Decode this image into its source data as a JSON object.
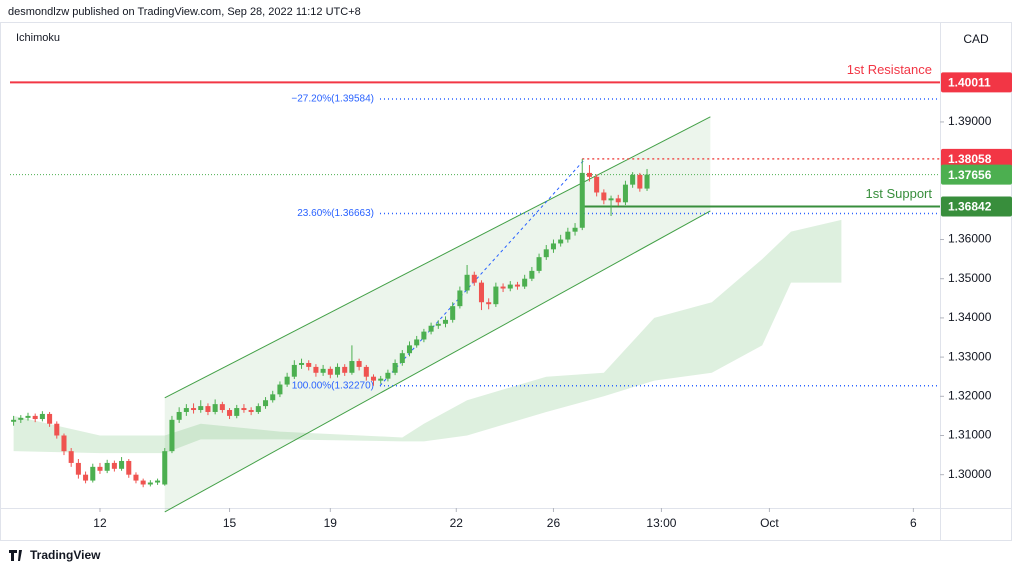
{
  "header": {
    "publisher": "desmondlzw published on TradingView.com, Sep 28, 2022 11:12 UTC+8",
    "indicator": "Ichimoku",
    "currency": "CAD"
  },
  "footer": {
    "brand": "TradingView"
  },
  "chart_data": {
    "type": "candlestick",
    "up_color": "#4caf50",
    "down_color": "#ef5350",
    "open": [
      1.3135,
      1.314,
      1.3145,
      1.315,
      1.3142,
      1.3155,
      1.313,
      1.31,
      1.306,
      1.303,
      1.3,
      1.2985,
      1.302,
      1.301,
      1.303,
      1.3015,
      1.3035,
      1.3,
      1.2985,
      1.2975,
      1.298,
      1.2975,
      1.306,
      1.314,
      1.316,
      1.317,
      1.3165,
      1.3175,
      1.316,
      1.318,
      1.3165,
      1.315,
      1.317,
      1.3165,
      1.316,
      1.3175,
      1.319,
      1.3205,
      1.323,
      1.325,
      1.328,
      1.3285,
      1.3275,
      1.326,
      1.327,
      1.3255,
      1.3275,
      1.326,
      1.329,
      1.3275,
      1.325,
      1.324,
      1.3245,
      1.326,
      1.3285,
      1.331,
      1.333,
      1.3345,
      1.3365,
      1.338,
      1.3385,
      1.3395,
      1.343,
      1.347,
      1.351,
      1.349,
      1.344,
      1.3435,
      1.348,
      1.3475,
      1.3485,
      1.348,
      1.35,
      1.352,
      1.3555,
      1.3575,
      1.359,
      1.36,
      1.362,
      1.363,
      1.377,
      1.376,
      1.372,
      1.37,
      1.3705,
      1.3695,
      1.374,
      1.3765,
      1.373
    ],
    "high": [
      1.315,
      1.3152,
      1.3158,
      1.3156,
      1.3162,
      1.316,
      1.3136,
      1.3105,
      1.3068,
      1.304,
      1.3008,
      1.3028,
      1.303,
      1.3038,
      1.3036,
      1.3045,
      1.304,
      1.3006,
      1.299,
      1.2986,
      1.299,
      1.3068,
      1.315,
      1.3172,
      1.318,
      1.3182,
      1.319,
      1.3182,
      1.3192,
      1.3186,
      1.317,
      1.3178,
      1.318,
      1.3172,
      1.3182,
      1.3198,
      1.3214,
      1.3238,
      1.326,
      1.3292,
      1.3296,
      1.3292,
      1.3282,
      1.328,
      1.3276,
      1.3284,
      1.3282,
      1.333,
      1.3296,
      1.328,
      1.3256,
      1.3252,
      1.3268,
      1.3294,
      1.3318,
      1.334,
      1.3354,
      1.3372,
      1.3388,
      1.3394,
      1.3404,
      1.344,
      1.348,
      1.3535,
      1.3518,
      1.3496,
      1.345,
      1.349,
      1.3488,
      1.3494,
      1.3492,
      1.351,
      1.353,
      1.3564,
      1.3586,
      1.36,
      1.3612,
      1.363,
      1.3642,
      1.38058,
      1.379,
      1.3766,
      1.3728,
      1.3712,
      1.3714,
      1.375,
      1.3772,
      1.377,
      1.378
    ],
    "low": [
      1.3125,
      1.3132,
      1.3138,
      1.3134,
      1.3136,
      1.3122,
      1.3092,
      1.305,
      1.302,
      1.299,
      1.2978,
      1.298,
      1.3002,
      1.3004,
      1.3008,
      1.301,
      1.2992,
      1.2978,
      1.2968,
      1.297,
      1.2974,
      1.2972,
      1.3055,
      1.3132,
      1.315,
      1.3156,
      1.3158,
      1.3152,
      1.3154,
      1.3158,
      1.3142,
      1.3144,
      1.3158,
      1.3152,
      1.3155,
      1.3168,
      1.3184,
      1.3198,
      1.3224,
      1.3244,
      1.327,
      1.3266,
      1.325,
      1.3252,
      1.3246,
      1.3248,
      1.3252,
      1.3255,
      1.3266,
      1.324,
      1.3227,
      1.3232,
      1.3238,
      1.3254,
      1.3278,
      1.3302,
      1.3324,
      1.3338,
      1.3358,
      1.3372,
      1.3376,
      1.3388,
      1.3424,
      1.3462,
      1.3482,
      1.342,
      1.3422,
      1.3428,
      1.3466,
      1.3468,
      1.3472,
      1.3474,
      1.3494,
      1.3514,
      1.3548,
      1.3566,
      1.3582,
      1.3592,
      1.361,
      1.3624,
      1.3748,
      1.371,
      1.369,
      1.366,
      1.3686,
      1.3688,
      1.3732,
      1.3722,
      1.3724
    ],
    "close": [
      1.314,
      1.3145,
      1.315,
      1.3142,
      1.3155,
      1.313,
      1.31,
      1.306,
      1.303,
      1.3,
      1.2985,
      1.302,
      1.301,
      1.303,
      1.3015,
      1.3035,
      1.3,
      1.2985,
      1.2975,
      1.298,
      1.2985,
      1.306,
      1.314,
      1.316,
      1.317,
      1.3165,
      1.3175,
      1.316,
      1.318,
      1.3165,
      1.315,
      1.317,
      1.3165,
      1.316,
      1.3175,
      1.319,
      1.3205,
      1.323,
      1.325,
      1.328,
      1.3285,
      1.3275,
      1.326,
      1.327,
      1.3255,
      1.3275,
      1.326,
      1.329,
      1.3275,
      1.325,
      1.324,
      1.3245,
      1.326,
      1.3285,
      1.331,
      1.333,
      1.3345,
      1.3365,
      1.338,
      1.3385,
      1.3395,
      1.343,
      1.347,
      1.351,
      1.349,
      1.344,
      1.3435,
      1.348,
      1.3475,
      1.3485,
      1.348,
      1.35,
      1.352,
      1.3555,
      1.3575,
      1.359,
      1.36,
      1.362,
      1.363,
      1.377,
      1.376,
      1.372,
      1.37,
      1.3705,
      1.3695,
      1.374,
      1.3765,
      1.373,
      1.37656
    ],
    "xlim": [
      -0.5,
      128.7
    ],
    "xticks": [
      {
        "value": 12,
        "label": "12"
      },
      {
        "value": 30,
        "label": "15"
      },
      {
        "value": 44,
        "label": "19"
      },
      {
        "value": 61.5,
        "label": "22"
      },
      {
        "value": 75,
        "label": "26"
      },
      {
        "value": 90,
        "label": "13:00"
      },
      {
        "value": 105,
        "label": "Oct"
      },
      {
        "value": 125,
        "label": "6"
      }
    ],
    "ylim": [
      1.2915,
      1.4155
    ],
    "yticks": [
      {
        "value": 1.3,
        "label": "1.30000"
      },
      {
        "value": 1.31,
        "label": "1.31000"
      },
      {
        "value": 1.32,
        "label": "1.32000"
      },
      {
        "value": 1.33,
        "label": "1.33000"
      },
      {
        "value": 1.34,
        "label": "1.34000"
      },
      {
        "value": 1.35,
        "label": "1.35000"
      },
      {
        "value": 1.36,
        "label": "1.36000"
      },
      {
        "value": 1.39,
        "label": "1.39000"
      }
    ],
    "cloud": {
      "color": "#c8e6c9",
      "x": [
        0,
        12,
        21,
        26,
        37,
        54,
        57,
        63,
        74,
        82,
        89,
        97,
        104,
        108,
        115
      ],
      "upper": [
        1.315,
        1.31,
        1.31,
        1.313,
        1.311,
        1.3095,
        1.313,
        1.319,
        1.325,
        1.326,
        1.34,
        1.344,
        1.355,
        1.362,
        1.365
      ],
      "lower": [
        1.306,
        1.3055,
        1.3055,
        1.309,
        1.309,
        1.3085,
        1.3085,
        1.31,
        1.316,
        1.32,
        1.324,
        1.326,
        1.333,
        1.349,
        1.349
      ]
    },
    "channel": {
      "color": "#43a047",
      "x": [
        21,
        96.8
      ],
      "upper": [
        1.3196,
        1.3913
      ],
      "lower": [
        1.2905,
        1.3673
      ]
    },
    "fib_color": "#2962ff",
    "fib_trend": {
      "x": [
        50.9,
        79.4
      ],
      "y": [
        1.3227,
        1.38058
      ]
    },
    "fib_levels": [
      {
        "label": "−27.20%(1.39584)",
        "value": 1.39584
      },
      {
        "label": "23.60%(1.36663)",
        "value": 1.36663
      },
      {
        "label": "100.00%(1.32270)",
        "value": 1.3227
      }
    ],
    "levels": [
      {
        "name": "1st Resistance",
        "value": 1.40011,
        "color": "#f23645",
        "x_start": -0.5
      },
      {
        "name": "1st Support",
        "value": 1.36842,
        "color": "#388e3c",
        "x_start": 79
      }
    ]
  }
}
